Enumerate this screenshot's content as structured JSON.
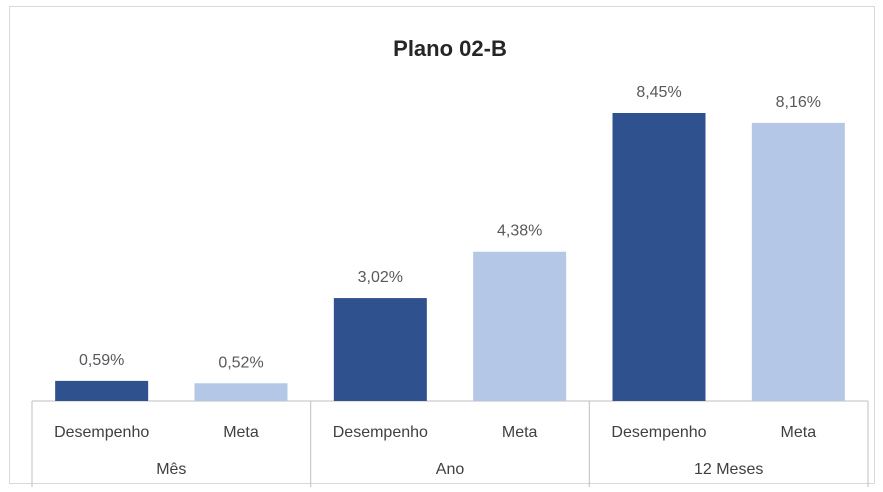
{
  "chart_data": {
    "type": "bar",
    "title": "Plano 02-B",
    "groups": [
      "Mês",
      "Ano",
      "12 Meses"
    ],
    "bars": [
      {
        "group": "Mês",
        "label": "Desempenho",
        "value": 0.59,
        "value_label": "0,59%",
        "color": "#2f528f"
      },
      {
        "group": "Mês",
        "label": "Meta",
        "value": 0.52,
        "value_label": "0,52%",
        "color": "#b4c7e7"
      },
      {
        "group": "Ano",
        "label": "Desempenho",
        "value": 3.02,
        "value_label": "3,02%",
        "color": "#2f528f"
      },
      {
        "group": "Ano",
        "label": "Meta",
        "value": 4.38,
        "value_label": "4,38%",
        "color": "#b4c7e7"
      },
      {
        "group": "12 Meses",
        "label": "Desempenho",
        "value": 8.45,
        "value_label": "8,45%",
        "color": "#2f528f"
      },
      {
        "group": "12 Meses",
        "label": "Meta",
        "value": 8.16,
        "value_label": "8,16%",
        "color": "#b4c7e7"
      }
    ],
    "ylim": [
      0,
      8.45
    ],
    "grid": false,
    "legend": "none"
  }
}
